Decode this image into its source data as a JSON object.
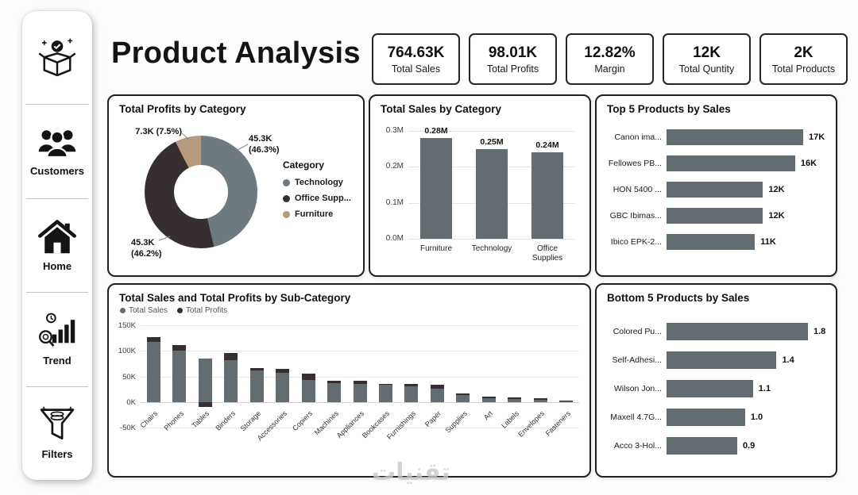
{
  "app": {
    "watermark": "تقنيات"
  },
  "sidebar": {
    "items": [
      {
        "id": "product",
        "label": "",
        "icon": "product-box-icon"
      },
      {
        "id": "customers",
        "label": "Customers",
        "icon": "customers-icon"
      },
      {
        "id": "home",
        "label": "Home",
        "icon": "home-icon"
      },
      {
        "id": "trend",
        "label": "Trend",
        "icon": "trend-icon"
      },
      {
        "id": "filters",
        "label": "Filters",
        "icon": "filters-icon"
      }
    ]
  },
  "header": {
    "title": "Product Analysis",
    "kpis": [
      {
        "value": "764.63K",
        "label": "Total Sales"
      },
      {
        "value": "98.01K",
        "label": "Total Profits"
      },
      {
        "value": "12.82%",
        "label": "Margin"
      },
      {
        "value": "12K",
        "label": "Total Quntity"
      },
      {
        "value": "2K",
        "label": "Total Products"
      }
    ]
  },
  "colors": {
    "bar_gray": "#636c70",
    "dark": "#362e30",
    "tan": "#b59b7d",
    "grid": "#e3e3e3"
  },
  "chart_data": [
    {
      "type": "pie",
      "donut": true,
      "title": "Total Profits by Category",
      "legend_title": "Category",
      "legend_position": "right",
      "slices": [
        {
          "label": "Technology",
          "value_label": "45.3K",
          "pct_label": "(46.3%)",
          "pct": 46.3,
          "color": "#6e7a80"
        },
        {
          "label": "Office Supp...",
          "value_label": "45.3K",
          "pct_label": "(46.2%)",
          "pct": 46.2,
          "color": "#362e30"
        },
        {
          "label": "Furniture",
          "value_label": "7.3K (7.5%)",
          "pct_label": "",
          "pct": 7.5,
          "color": "#b59b7d"
        }
      ]
    },
    {
      "type": "bar",
      "title": "Total Sales by Category",
      "categories": [
        "Furniture",
        "Technology",
        "Office Supplies"
      ],
      "values": [
        0.28,
        0.25,
        0.24
      ],
      "value_labels": [
        "0.28M",
        "0.25M",
        "0.24M"
      ],
      "y_ticks": [
        "0.3M",
        "0.2M",
        "0.1M",
        "0.0M"
      ],
      "ylim": [
        0,
        0.3
      ],
      "xlabel": "",
      "ylabel": "",
      "grid": true,
      "bar_color": "#636c70"
    },
    {
      "type": "bar",
      "orientation": "horizontal",
      "title": "Top 5 Products by Sales",
      "categories": [
        "Canon ima...",
        "Fellowes PB...",
        "HON 5400 ...",
        "GBC Ibimas...",
        "Ibico EPK-2..."
      ],
      "values": [
        17,
        16,
        12,
        12,
        11
      ],
      "value_labels": [
        "17K",
        "16K",
        "12K",
        "12K",
        "11K"
      ],
      "xmax": 17,
      "bar_color": "#636c70"
    },
    {
      "type": "bar",
      "stacked": true,
      "title": "Total Sales and Total Profits by Sub-Category",
      "legend": [
        "Total Sales",
        "Total Profits"
      ],
      "legend_position": "top-left",
      "colors": [
        "#636c70",
        "#362e30"
      ],
      "categories": [
        "Chairs",
        "Phones",
        "Tables",
        "Binders",
        "Storage",
        "Accessories",
        "Copiers",
        "Machines",
        "Appliances",
        "Bookcases",
        "Furnishings",
        "Paper",
        "Supplies",
        "Art",
        "Labels",
        "Envelopes",
        "Fasteners"
      ],
      "series": [
        {
          "name": "Total Sales",
          "values": [
            118,
            100,
            85,
            82,
            61,
            57,
            43,
            37,
            35,
            33,
            30,
            26,
            14,
            8,
            6,
            5,
            2
          ]
        },
        {
          "name": "Total Profits",
          "values": [
            8,
            11,
            -9,
            13,
            6,
            8,
            12,
            4,
            6,
            2,
            5,
            8,
            2,
            3,
            3,
            2,
            1
          ]
        }
      ],
      "y_ticks": [
        "150K",
        "100K",
        "50K",
        "0K",
        "-50K"
      ],
      "ylim": [
        -50,
        150
      ],
      "unit": "K",
      "grid": true
    },
    {
      "type": "bar",
      "orientation": "horizontal",
      "title": "Bottom 5 Products by Sales",
      "categories": [
        "Colored Pu...",
        "Self-Adhesi...",
        "Wilson Jon...",
        "Maxell 4.7G...",
        "Acco 3-Hol..."
      ],
      "values": [
        1.8,
        1.4,
        1.1,
        1.0,
        0.9
      ],
      "value_labels": [
        "1.8",
        "1.4",
        "1.1",
        "1.0",
        "0.9"
      ],
      "xmax": 1.8,
      "bar_color": "#636c70"
    }
  ]
}
